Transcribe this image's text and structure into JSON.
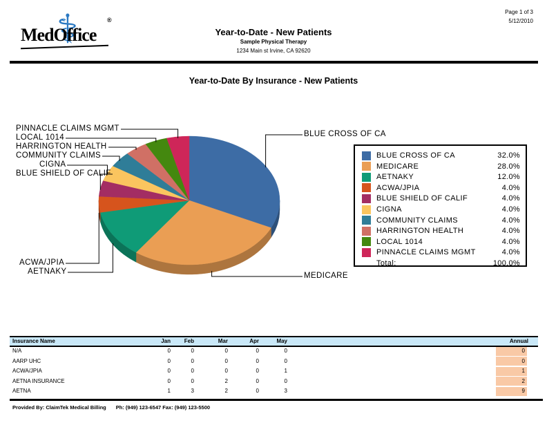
{
  "header": {
    "logo": {
      "text": "MedOffice",
      "reg": "®",
      "icon": "⚕"
    },
    "title": "Year-to-Date - New Patients",
    "subtitle": "Sample Physical Therapy",
    "address": "1234 Main st Irvine, CA 92620",
    "page_info": "Page 1 of 3",
    "date": "5/12/2010"
  },
  "chart": {
    "title": "Year-to-Date By Insurance - New Patients"
  },
  "chart_data": {
    "type": "pie",
    "title": "Year-to-Date By Insurance - New Patients",
    "style": "3d-pie",
    "start_angle_deg": 0,
    "direction": "clockwise",
    "legend_position": "right",
    "slices": [
      {
        "name": "BLUE CROSS OF CA",
        "value": 32.0,
        "pct_label": "32.0%",
        "color": "#3d6ca5"
      },
      {
        "name": "MEDICARE",
        "value": 28.0,
        "pct_label": "28.0%",
        "color": "#ea9e54"
      },
      {
        "name": "AETNAKY",
        "value": 12.0,
        "pct_label": "12.0%",
        "color": "#0f9b77"
      },
      {
        "name": "ACWA/JPIA",
        "value": 4.0,
        "pct_label": "4.0%",
        "color": "#d6541d"
      },
      {
        "name": "BLUE SHIELD OF CALIF",
        "value": 4.0,
        "pct_label": "4.0%",
        "color": "#a32d63"
      },
      {
        "name": "CIGNA",
        "value": 4.0,
        "pct_label": "4.0%",
        "color": "#fac55f"
      },
      {
        "name": "COMMUNITY CLAIMS",
        "value": 4.0,
        "pct_label": "4.0%",
        "color": "#2f7d98"
      },
      {
        "name": "HARRINGTON HEALTH",
        "value": 4.0,
        "pct_label": "4.0%",
        "color": "#d07065"
      },
      {
        "name": "LOCAL 1014",
        "value": 4.0,
        "pct_label": "4.0%",
        "color": "#44880f"
      },
      {
        "name": "PINNACLE CLAIMS MGMT",
        "value": 4.0,
        "pct_label": "4.0%",
        "color": "#ce2659"
      }
    ],
    "total_label": "Total:",
    "total_pct": "100.0%"
  },
  "table": {
    "columns": [
      "Insurance Name",
      "Jan",
      "Feb",
      "Mar",
      "Apr",
      "May",
      "Annual"
    ],
    "header_bg": "#c9e8f8",
    "annual_highlight_color": "#f9c9a6",
    "rows": [
      {
        "name": "N/A",
        "values": [
          0,
          0,
          0,
          0,
          0
        ],
        "annual": 0
      },
      {
        "name": "AARP UHC",
        "values": [
          0,
          0,
          0,
          0,
          0
        ],
        "annual": 0
      },
      {
        "name": "ACWA/JPIA",
        "values": [
          0,
          0,
          0,
          0,
          1
        ],
        "annual": 1
      },
      {
        "name": "AETNA INSURANCE",
        "values": [
          0,
          0,
          2,
          0,
          0
        ],
        "annual": 2
      },
      {
        "name": "AETNA",
        "values": [
          1,
          3,
          2,
          0,
          3
        ],
        "annual": 9
      }
    ]
  },
  "footer": {
    "provided_by": "Provided By: ClaimTek Medical Billing",
    "phone_fax": "Ph: (949) 123-6547 Fax: (949) 123-5500"
  }
}
